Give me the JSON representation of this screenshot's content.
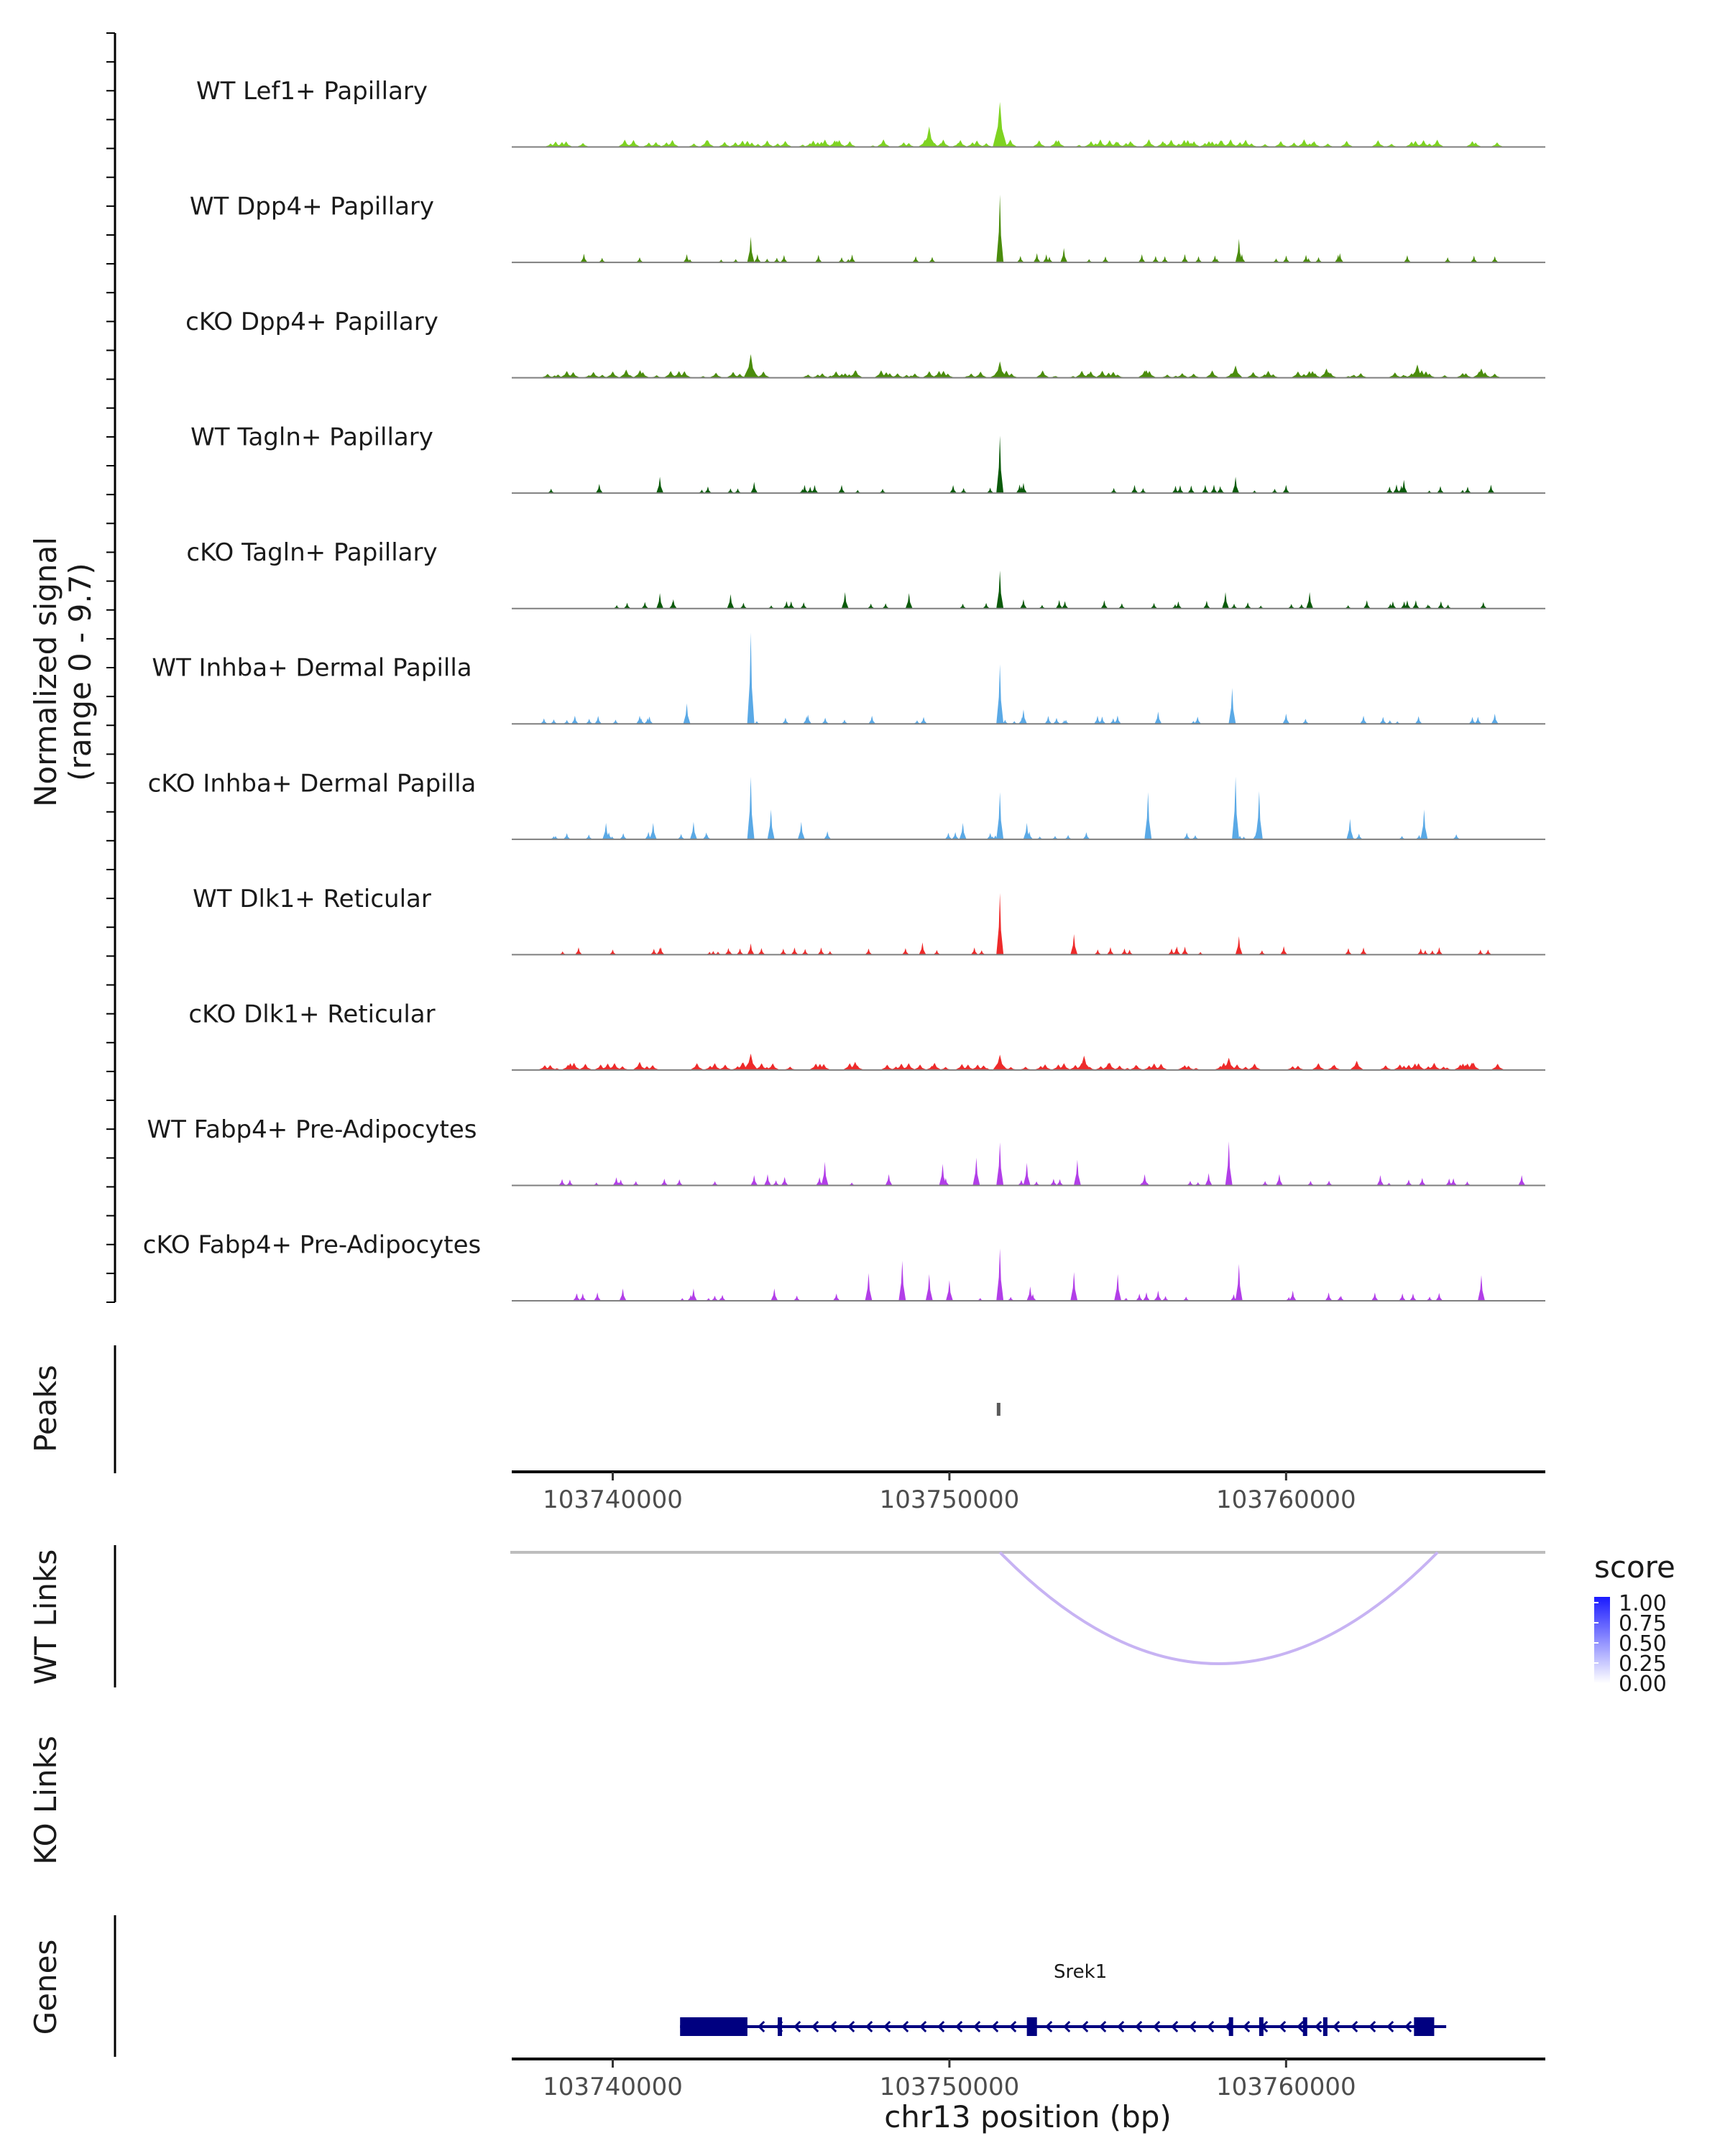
{
  "chart_data": {
    "type": "genome-tracks",
    "x_range_bp": [
      103737000,
      103767700
    ],
    "x_ticks": [
      103740000,
      103750000,
      103760000
    ],
    "x_tick_labels": [
      "103740000",
      "103750000",
      "103760000"
    ],
    "xlabel": "chr13 position (bp)",
    "coverage": {
      "ylabel": "Normalized signal",
      "ylabel_range": "(range 0 - 9.7)",
      "ymax": 9.7,
      "tracks": [
        {
          "name": "WT Lef1+ Papillary",
          "color": "#7ed321",
          "mode": "dense",
          "peaks": [
            [
              103749400,
              2.0
            ],
            [
              103751500,
              4.4
            ],
            [
              103744000,
              0.6
            ],
            [
              103755000,
              0.5
            ],
            [
              103758800,
              0.7
            ],
            [
              103761800,
              0.6
            ],
            [
              103746200,
              0.5
            ]
          ]
        },
        {
          "name": "WT Dpp4+ Papillary",
          "color": "#4a8c0c",
          "mode": "sparse",
          "peaks": [
            [
              103751500,
              6.6
            ],
            [
              103744100,
              2.5
            ],
            [
              103758600,
              2.3
            ],
            [
              103753400,
              1.4
            ],
            [
              103752600,
              0.9
            ],
            [
              103742200,
              0.8
            ],
            [
              103761600,
              0.9
            ],
            [
              103763600,
              0.7
            ],
            [
              103740800,
              0.5
            ],
            [
              103746800,
              0.5
            ],
            [
              103749000,
              0.6
            ],
            [
              103756400,
              0.6
            ],
            [
              103757400,
              0.6
            ],
            [
              103764800,
              0.5
            ],
            [
              103766200,
              0.6
            ]
          ]
        },
        {
          "name": "cKO Dpp4+ Papillary",
          "color": "#4a8c0c",
          "mode": "dense",
          "peaks": [
            [
              103744100,
              2.3
            ],
            [
              103751500,
              1.6
            ],
            [
              103758500,
              1.2
            ],
            [
              103763900,
              1.3
            ],
            [
              103740400,
              0.8
            ],
            [
              103747200,
              0.7
            ],
            [
              103755800,
              0.7
            ],
            [
              103761200,
              0.9
            ],
            [
              103765800,
              0.9
            ]
          ]
        },
        {
          "name": "WT Tagln+ Papillary",
          "color": "#0a5a0a",
          "mode": "sparse",
          "peaks": [
            [
              103751500,
              5.6
            ],
            [
              103741400,
              1.6
            ],
            [
              103744200,
              1.1
            ],
            [
              103752200,
              1.0
            ],
            [
              103758500,
              1.6
            ],
            [
              103763500,
              1.3
            ],
            [
              103739600,
              0.9
            ],
            [
              103745700,
              0.8
            ],
            [
              103746800,
              0.8
            ],
            [
              103755500,
              0.8
            ],
            [
              103757600,
              0.8
            ],
            [
              103760000,
              0.8
            ]
          ]
        },
        {
          "name": "cKO Tagln+ Papillary",
          "color": "#0a5a0a",
          "mode": "sparse",
          "peaks": [
            [
              103751500,
              3.7
            ],
            [
              103741400,
              1.5
            ],
            [
              103746900,
              1.6
            ],
            [
              103748800,
              1.5
            ],
            [
              103743500,
              1.4
            ],
            [
              103758200,
              1.6
            ],
            [
              103760700,
              1.6
            ],
            [
              103741800,
              0.9
            ],
            [
              103745300,
              0.7
            ],
            [
              103752200,
              0.9
            ],
            [
              103754600,
              0.8
            ],
            [
              103762400,
              0.8
            ],
            [
              103763600,
              0.8
            ],
            [
              103756800,
              0.7
            ]
          ]
        },
        {
          "name": "WT Inhba+ Dermal Papilla",
          "color": "#5aa9e6",
          "mode": "sparse",
          "peaks": [
            [
              103744100,
              8.9
            ],
            [
              103751500,
              5.8
            ],
            [
              103758400,
              3.5
            ],
            [
              103742200,
              2.0
            ],
            [
              103745800,
              0.9
            ],
            [
              103747700,
              0.8
            ],
            [
              103752200,
              1.4
            ],
            [
              103754400,
              0.8
            ],
            [
              103756200,
              1.2
            ],
            [
              103760000,
              1.0
            ],
            [
              103762300,
              0.8
            ],
            [
              103765700,
              0.7
            ],
            [
              103740800,
              0.8
            ],
            [
              103766200,
              1.0
            ],
            [
              103739300,
              0.5
            ]
          ]
        },
        {
          "name": "cKO Inhba+ Dermal Papilla",
          "color": "#5aa9e6",
          "mode": "sparse",
          "peaks": [
            [
              103744100,
              6.1
            ],
            [
              103758500,
              6.1
            ],
            [
              103755900,
              4.6
            ],
            [
              103751500,
              4.6
            ],
            [
              103759200,
              4.7
            ],
            [
              103764100,
              2.9
            ],
            [
              103744700,
              2.9
            ],
            [
              103761900,
              2.0
            ],
            [
              103739800,
              1.6
            ],
            [
              103741200,
              1.6
            ],
            [
              103742400,
              1.7
            ],
            [
              103750400,
              1.6
            ],
            [
              103752300,
              1.6
            ],
            [
              103745600,
              1.7
            ]
          ]
        },
        {
          "name": "WT Dlk1+ Reticular",
          "color": "#ee2a2a",
          "mode": "sparse",
          "peaks": [
            [
              103751500,
              6.0
            ],
            [
              103753700,
              2.0
            ],
            [
              103758600,
              1.8
            ],
            [
              103744100,
              1.1
            ],
            [
              103749200,
              1.2
            ],
            [
              103741400,
              0.7
            ],
            [
              103745400,
              0.7
            ],
            [
              103747600,
              0.6
            ],
            [
              103755200,
              0.6
            ],
            [
              103762300,
              0.7
            ],
            [
              103764000,
              0.6
            ],
            [
              103740000,
              0.5
            ],
            [
              103756600,
              0.6
            ],
            [
              103766000,
              0.5
            ]
          ]
        },
        {
          "name": "cKO Dlk1+ Reticular",
          "color": "#ee2a2a",
          "mode": "dense",
          "peaks": [
            [
              103744100,
              1.6
            ],
            [
              103751500,
              1.5
            ],
            [
              103754000,
              1.4
            ],
            [
              103758300,
              1.2
            ],
            [
              103747200,
              0.8
            ],
            [
              103740800,
              0.8
            ],
            [
              103762100,
              0.9
            ],
            [
              103764400,
              0.7
            ]
          ]
        },
        {
          "name": "WT Fabp4+ Pre-Adipocytes",
          "color": "#b23ee8",
          "mode": "sparse",
          "peaks": [
            [
              103751500,
              4.2
            ],
            [
              103758300,
              4.3
            ],
            [
              103746300,
              2.3
            ],
            [
              103749800,
              2.1
            ],
            [
              103753800,
              2.5
            ],
            [
              103752300,
              2.2
            ],
            [
              103750800,
              2.7
            ],
            [
              103744600,
              1.1
            ],
            [
              103748200,
              1.1
            ],
            [
              103755800,
              1.1
            ],
            [
              103757700,
              1.2
            ],
            [
              103759800,
              1.1
            ],
            [
              103762800,
              1.0
            ],
            [
              103767000,
              1.0
            ],
            [
              103744200,
              1.0
            ]
          ]
        },
        {
          "name": "cKO Fabp4+ Pre-Adipocytes",
          "color": "#b23ee8",
          "mode": "sparse",
          "peaks": [
            [
              103751500,
              5.1
            ],
            [
              103748600,
              3.9
            ],
            [
              103749400,
              2.6
            ],
            [
              103747600,
              2.7
            ],
            [
              103753700,
              2.8
            ],
            [
              103758600,
              3.6
            ],
            [
              103750000,
              2.0
            ],
            [
              103755000,
              2.6
            ],
            [
              103752400,
              1.4
            ],
            [
              103740300,
              1.2
            ],
            [
              103742400,
              1.2
            ],
            [
              103744800,
              1.2
            ],
            [
              103756200,
              1.0
            ],
            [
              103760200,
              1.0
            ],
            [
              103765800,
              2.5
            ]
          ]
        }
      ]
    },
    "peaks_track": {
      "label": "Peaks",
      "regions": [
        [
          103751450,
          103751550
        ]
      ],
      "color": "#5a5a5a"
    },
    "wt_links": {
      "label": "WT Links",
      "links": [
        {
          "start": 103751500,
          "end": 103764500,
          "score": 0.32
        }
      ]
    },
    "ko_links": {
      "label": "KO Links",
      "links": []
    },
    "link_legend": {
      "title": "score",
      "ticks": [
        "1.00",
        "0.75",
        "0.50",
        "0.25",
        "0.00"
      ],
      "high_color": "#1a1aff",
      "low_color": "#ffffff"
    },
    "genes": {
      "label": "Genes",
      "color": "#000080",
      "items": [
        {
          "name": "Srek1",
          "strand": "-",
          "start": 103742000,
          "end": 103764500,
          "exons": [
            [
              103742000,
              103744000
            ],
            [
              103744900,
              103745000
            ],
            [
              103752300,
              103752600
            ],
            [
              103758300,
              103758400
            ],
            [
              103759200,
              103759300
            ],
            [
              103760500,
              103760600
            ],
            [
              103761100,
              103761200
            ],
            [
              103763800,
              103764400
            ]
          ]
        }
      ]
    }
  }
}
